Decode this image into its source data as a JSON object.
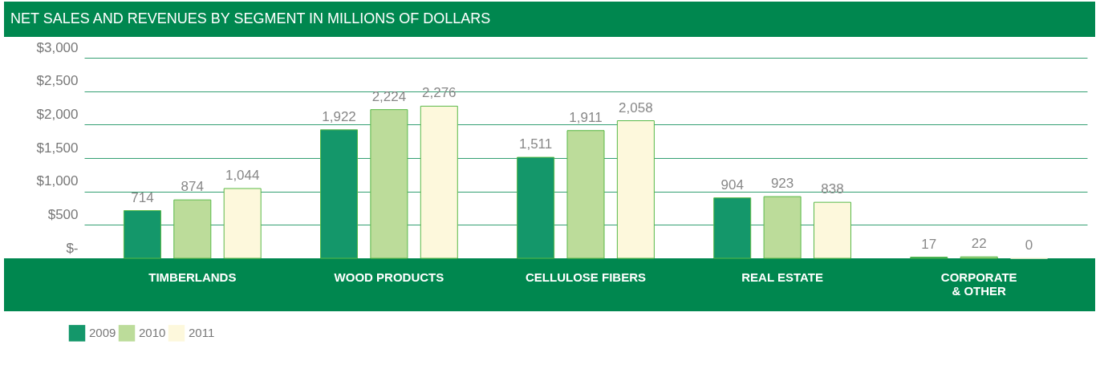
{
  "chart_data": {
    "type": "bar",
    "title": "NET SALES AND REVENUES BY SEGMENT IN MILLIONS OF DOLLARS",
    "categories": [
      "TIMBERLANDS",
      "WOOD PRODUCTS",
      "CELLULOSE FIBERS",
      "REAL ESTATE",
      "CORPORATE & OTHER"
    ],
    "series": [
      {
        "name": "2009",
        "color": "#14976a",
        "values": [
          714,
          1922,
          1511,
          904,
          17
        ],
        "value_labels": [
          "714",
          "1,922",
          "1,511",
          "904",
          "17"
        ]
      },
      {
        "name": "2010",
        "color": "#bcdc9a",
        "values": [
          874,
          2224,
          1911,
          923,
          22
        ],
        "value_labels": [
          "874",
          "2,224",
          "1,911",
          "923",
          "22"
        ]
      },
      {
        "name": "2011",
        "color": "#fdf8dc",
        "values": [
          1044,
          2276,
          2058,
          838,
          0
        ],
        "value_labels": [
          "1,044",
          "2,276",
          "2,058",
          "838",
          "0"
        ]
      }
    ],
    "ylim": [
      0,
      3000
    ],
    "yticks": [
      {
        "value": 0,
        "label": "$-"
      },
      {
        "value": 500,
        "label": "$500"
      },
      {
        "value": 1000,
        "label": "$1,000"
      },
      {
        "value": 1500,
        "label": "$1,500"
      },
      {
        "value": 2000,
        "label": "$2,000"
      },
      {
        "value": 2500,
        "label": "$2,500"
      },
      {
        "value": 3000,
        "label": "$3,000"
      }
    ],
    "grid": "y",
    "legend": "bottom left"
  }
}
